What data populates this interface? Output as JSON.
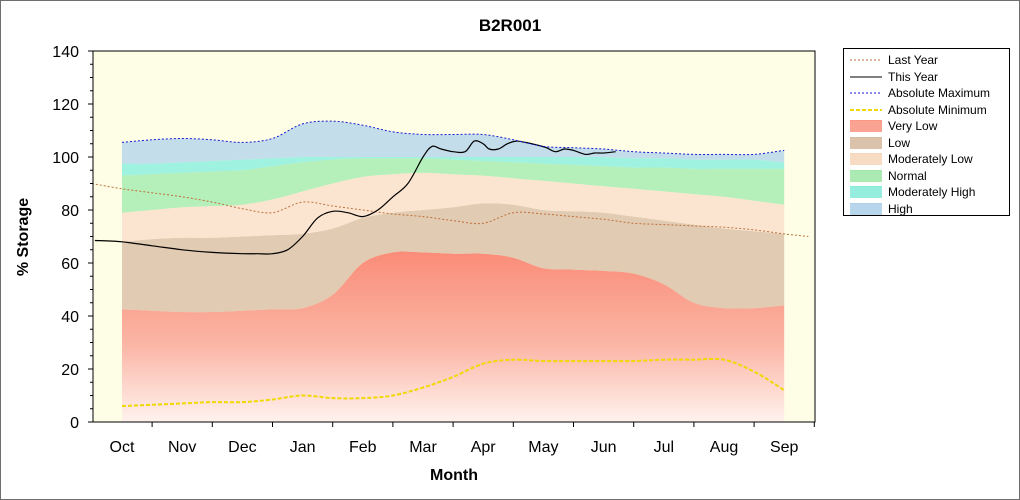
{
  "chart_data": {
    "type": "area",
    "title": "B2R001",
    "xlabel": "Month",
    "ylabel": "% Storage",
    "ylim": [
      0,
      140
    ],
    "yticks": [
      0,
      20,
      40,
      60,
      80,
      100,
      120,
      140
    ],
    "categories": [
      "Oct",
      "Nov",
      "Dec",
      "Jan",
      "Feb",
      "Mar",
      "Apr",
      "May",
      "Jun",
      "Jul",
      "Aug",
      "Sep"
    ],
    "legend_position": "right",
    "x": [
      0.0,
      0.5,
      1.0,
      1.5,
      2.0,
      2.5,
      3.0,
      3.5,
      4.0,
      4.5,
      5.0,
      5.5,
      6.0,
      6.5,
      7.0,
      7.5,
      8.0,
      8.5,
      9.0,
      9.5,
      10.0,
      10.5,
      11.0
    ],
    "bands": [
      {
        "name": "Very Low",
        "color": "#fa8c78",
        "values": [
          42.5,
          42,
          41.5,
          41.5,
          42,
          42.5,
          43,
          48,
          60,
          64,
          64,
          63.5,
          63.5,
          62,
          58,
          57.5,
          57,
          56,
          52,
          45,
          43,
          43,
          44
        ]
      },
      {
        "name": "Low",
        "color": "#d2b496",
        "values": [
          68,
          69,
          69.5,
          69.5,
          70,
          70.5,
          71,
          73,
          77,
          79,
          80,
          81,
          82.5,
          82,
          80,
          79.5,
          79,
          77.5,
          76,
          74.5,
          73,
          72,
          71
        ]
      },
      {
        "name": "Moderately Low",
        "color": "#f5d2b4",
        "values": [
          79,
          80,
          81,
          81.5,
          82,
          84,
          87,
          90,
          92.5,
          93.5,
          94,
          93.5,
          93,
          92,
          91,
          90,
          89,
          88,
          87,
          86,
          85,
          83.5,
          82
        ]
      },
      {
        "name": "Normal",
        "color": "#96e6a0",
        "values": [
          93,
          93.5,
          94,
          94.5,
          95,
          96.5,
          98,
          99,
          99.5,
          99.5,
          99.5,
          99,
          98.5,
          98,
          97.5,
          97,
          96.5,
          96,
          96,
          95.5,
          95.5,
          95.5,
          95.5
        ]
      },
      {
        "name": "Moderately High",
        "color": "#7ae8d6",
        "values": [
          97.5,
          97.5,
          98,
          98.5,
          99,
          99.5,
          100,
          100,
          100,
          100,
          100,
          100,
          100,
          100,
          100,
          100,
          100,
          99.5,
          99.5,
          99,
          99,
          99,
          98
        ]
      },
      {
        "name": "High",
        "color": "#a6cce6",
        "values": [
          105.5,
          106.5,
          107,
          106.5,
          105.5,
          107,
          112.5,
          113.5,
          112,
          109.5,
          108.5,
          108.5,
          108.5,
          106.5,
          104,
          103.5,
          103,
          102,
          101.5,
          101,
          101,
          101,
          102.5
        ]
      }
    ],
    "series": [
      {
        "name": "Last Year",
        "color": "#c0703a",
        "style": "dotted",
        "x": [
          -0.5,
          0,
          0.5,
          1,
          1.5,
          2,
          2.5,
          3,
          3.5,
          4,
          4.5,
          5,
          5.5,
          6,
          6.5,
          7,
          7.5,
          8,
          8.5,
          9,
          9.5,
          10,
          10.5,
          11,
          11.4
        ],
        "values": [
          90,
          88,
          86.5,
          85,
          83,
          80.5,
          79,
          83,
          81.5,
          80,
          78.5,
          77.5,
          76,
          75,
          79,
          78.5,
          77.5,
          76.5,
          75,
          74.5,
          74,
          73.5,
          72.5,
          71,
          70
        ]
      },
      {
        "name": "This Year",
        "color": "#000000",
        "style": "solid",
        "x": [
          -0.45,
          0,
          0.5,
          1,
          1.5,
          2,
          2.25,
          2.5,
          2.75,
          3,
          3.25,
          3.5,
          3.75,
          4,
          4.25,
          4.5,
          4.75,
          5,
          5.15,
          5.3,
          5.5,
          5.7,
          5.85,
          6,
          6.1,
          6.25,
          6.4,
          6.55,
          6.7,
          6.9,
          7.05,
          7.2,
          7.35,
          7.5,
          7.7,
          7.85,
          8.0,
          8.2
        ],
        "values": [
          68.5,
          68,
          66.5,
          65,
          64,
          63.5,
          63.5,
          63.5,
          65,
          70,
          77,
          79.5,
          79,
          77.5,
          80,
          85,
          90,
          100,
          104,
          103,
          102,
          102,
          106,
          105,
          103,
          103,
          105,
          106,
          105.5,
          104.5,
          103.5,
          102,
          103,
          102.5,
          101,
          101.5,
          101.5,
          102
        ]
      },
      {
        "name": "Absolute Maximum",
        "color": "#1a1ad0",
        "style": "dotted",
        "x": [
          0.0,
          0.5,
          1.0,
          1.5,
          2.0,
          2.5,
          3.0,
          3.5,
          4.0,
          4.5,
          5.0,
          5.5,
          6.0,
          6.5,
          7.0,
          7.5,
          8.0,
          8.5,
          9.0,
          9.5,
          10.0,
          10.5,
          11.0
        ],
        "values": [
          105.5,
          106.5,
          107,
          106.5,
          105.5,
          107,
          112.5,
          113.5,
          112,
          109.5,
          108.5,
          108.5,
          108.5,
          106.5,
          104,
          103.5,
          103,
          102,
          101.5,
          101,
          101,
          101,
          102.5
        ]
      },
      {
        "name": "Absolute Minimum",
        "color": "#f0d800",
        "style": "dashed",
        "x": [
          0.0,
          0.5,
          1.0,
          1.5,
          2.0,
          2.5,
          3.0,
          3.5,
          4.0,
          4.5,
          5.0,
          5.5,
          6.0,
          6.5,
          7.0,
          7.5,
          8.0,
          8.5,
          9.0,
          9.5,
          10.0,
          10.5,
          11.0
        ],
        "values": [
          6,
          6.5,
          7,
          7.5,
          7.5,
          8.5,
          10,
          9,
          9,
          10,
          13,
          17,
          22,
          23.5,
          23,
          23,
          23,
          23,
          23.5,
          23.5,
          23.5,
          19,
          12
        ]
      }
    ],
    "legend": [
      "Last Year",
      "This Year",
      "Absolute Maximum",
      "Absolute Minimum",
      "Very Low",
      "Low",
      "Moderately Low",
      "Normal",
      "Moderately High",
      "High"
    ]
  }
}
